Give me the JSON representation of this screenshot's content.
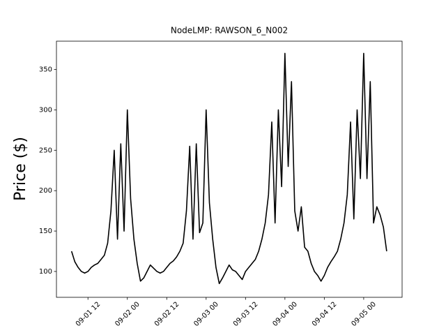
{
  "chart_data": {
    "type": "line",
    "title": "NodeLMP: RAWSON_6_N002",
    "y_label": "Price ($)",
    "x": [
      "09-01 07:00",
      "09-01 08:00",
      "09-01 09:00",
      "09-01 10:00",
      "09-01 11:00",
      "09-01 12:00",
      "09-01 13:00",
      "09-01 14:00",
      "09-01 15:00",
      "09-01 16:00",
      "09-01 17:00",
      "09-01 18:00",
      "09-01 19:00",
      "09-01 20:00",
      "09-01 21:00",
      "09-01 22:00",
      "09-01 23:00",
      "09-02 00:00",
      "09-02 01:00",
      "09-02 02:00",
      "09-02 03:00",
      "09-02 04:00",
      "09-02 05:00",
      "09-02 06:00",
      "09-02 07:00",
      "09-02 08:00",
      "09-02 09:00",
      "09-02 10:00",
      "09-02 11:00",
      "09-02 12:00",
      "09-02 13:00",
      "09-02 14:00",
      "09-02 15:00",
      "09-02 16:00",
      "09-02 17:00",
      "09-02 18:00",
      "09-02 19:00",
      "09-02 20:00",
      "09-02 21:00",
      "09-02 22:00",
      "09-02 23:00",
      "09-03 00:00",
      "09-03 01:00",
      "09-03 02:00",
      "09-03 03:00",
      "09-03 04:00",
      "09-03 05:00",
      "09-03 06:00",
      "09-03 07:00",
      "09-03 08:00",
      "09-03 09:00",
      "09-03 10:00",
      "09-03 11:00",
      "09-03 12:00",
      "09-03 13:00",
      "09-03 14:00",
      "09-03 15:00",
      "09-03 16:00",
      "09-03 17:00",
      "09-03 18:00",
      "09-03 19:00",
      "09-03 20:00",
      "09-03 21:00",
      "09-03 22:00",
      "09-03 23:00",
      "09-04 00:00",
      "09-04 01:00",
      "09-04 02:00",
      "09-04 03:00",
      "09-04 04:00",
      "09-04 05:00",
      "09-04 06:00",
      "09-04 07:00",
      "09-04 08:00",
      "09-04 09:00",
      "09-04 10:00",
      "09-04 11:00",
      "09-04 12:00",
      "09-04 13:00",
      "09-04 14:00",
      "09-04 15:00",
      "09-04 16:00",
      "09-04 17:00",
      "09-04 18:00",
      "09-04 19:00",
      "09-04 20:00",
      "09-04 21:00",
      "09-04 22:00",
      "09-04 23:00",
      "09-05 00:00",
      "09-05 01:00",
      "09-05 02:00",
      "09-05 03:00",
      "09-05 04:00",
      "09-05 05:00",
      "09-05 06:00",
      "09-05 07:00"
    ],
    "series": [
      {
        "color": "#000000",
        "values": [
          125,
          112,
          105,
          100,
          98,
          100,
          105,
          108,
          110,
          115,
          120,
          135,
          175,
          250,
          140,
          258,
          150,
          300,
          190,
          140,
          110,
          88,
          92,
          100,
          108,
          104,
          100,
          98,
          100,
          105,
          110,
          113,
          118,
          125,
          135,
          175,
          255,
          140,
          258,
          148,
          160,
          300,
          185,
          140,
          105,
          85,
          92,
          100,
          108,
          102,
          100,
          95,
          90,
          100,
          105,
          110,
          115,
          125,
          140,
          160,
          195,
          285,
          160,
          300,
          205,
          370,
          230,
          335,
          175,
          150,
          180,
          130,
          125,
          110,
          100,
          95,
          88,
          95,
          105,
          112,
          118,
          125,
          140,
          160,
          195,
          285,
          165,
          300,
          215,
          370,
          215,
          335,
          160,
          180,
          170,
          155,
          125
        ]
      }
    ],
    "xlim": [
      "09-01 02:24",
      "09-05 11:42"
    ],
    "xticks": [
      {
        "value": "09-01 12:00",
        "label": "09-01 12"
      },
      {
        "value": "09-02 00:00",
        "label": "09-02 00"
      },
      {
        "value": "09-02 12:00",
        "label": "09-02 12"
      },
      {
        "value": "09-03 00:00",
        "label": "09-03 00"
      },
      {
        "value": "09-03 12:00",
        "label": "09-03 12"
      },
      {
        "value": "09-04 00:00",
        "label": "09-04 00"
      },
      {
        "value": "09-04 12:00",
        "label": "09-04 12"
      },
      {
        "value": "09-05 00:00",
        "label": "09-05 00"
      }
    ],
    "ylim": [
      68,
      385
    ],
    "yticks": [
      100,
      150,
      200,
      250,
      300,
      350
    ]
  }
}
